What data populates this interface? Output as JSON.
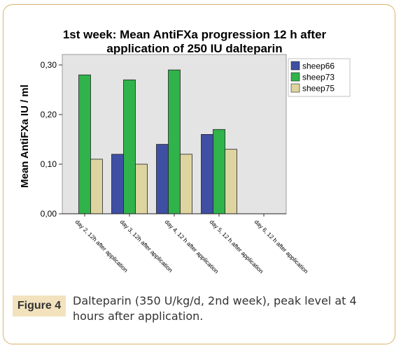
{
  "chart_data": {
    "type": "bar",
    "title_lines": [
      "1st week: Mean AntiFXa progression 12 h after",
      "application of 250 IU dalteparin"
    ],
    "ylabel": "Mean AntiFXa IU / ml",
    "xlabel": "",
    "ylim": [
      0,
      0.3
    ],
    "yticks": [
      "0,00",
      "0,10",
      "0,20",
      "0,30"
    ],
    "ytick_values": [
      0,
      0.1,
      0.2,
      0.3
    ],
    "categories": [
      "day 2, 12h after application",
      "day 3, 12h after application",
      "day 4, 12 h after application",
      "day 5, 12 h after application",
      "day 6, 12 h after application"
    ],
    "series": [
      {
        "name": "sheep66",
        "color": "#3f4fa3",
        "values": [
          0,
          0.12,
          0.14,
          0.16,
          0
        ]
      },
      {
        "name": "sheep73",
        "color": "#2fb34a",
        "values": [
          0.28,
          0.27,
          0.29,
          0.17,
          0
        ]
      },
      {
        "name": "sheep75",
        "color": "#ddd4a0",
        "values": [
          0.11,
          0.1,
          0.12,
          0.13,
          0
        ]
      }
    ],
    "legend_position": "right",
    "grid": false,
    "plot_background": "#e4e4e4"
  },
  "caption": {
    "tag": "Figure 4",
    "text": "Dalteparin (350 U/kg/d, 2nd week), peak level at 4 hours after application."
  }
}
